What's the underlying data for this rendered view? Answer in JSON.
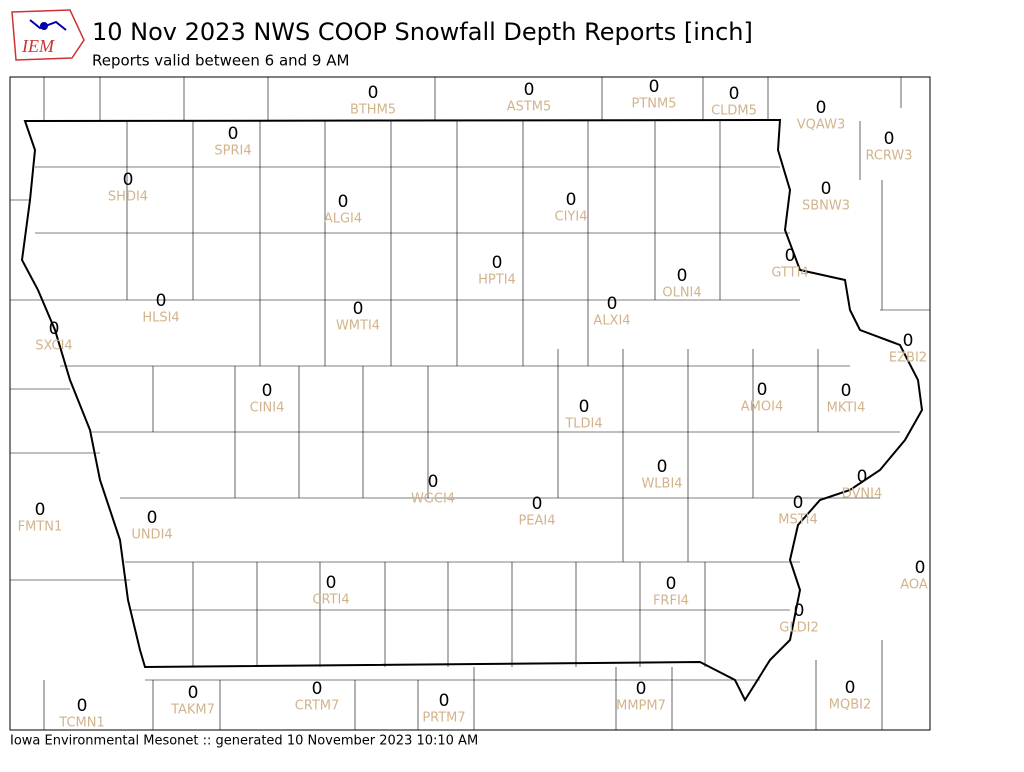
{
  "header": {
    "title": "10 Nov 2023 NWS COOP Snowfall Depth Reports [inch]",
    "subtitle": "Reports valid between 6 and 9 AM",
    "logo": "IEM"
  },
  "stations": [
    {
      "id": "BTHM5",
      "value": 0
    },
    {
      "id": "ASTM5",
      "value": 0
    },
    {
      "id": "PTNM5",
      "value": 0
    },
    {
      "id": "CLDM5",
      "value": 0
    },
    {
      "id": "VQAW3",
      "value": 0
    },
    {
      "id": "RCRW3",
      "value": 0
    },
    {
      "id": "SPRI4",
      "value": 0
    },
    {
      "id": "SBNW3",
      "value": 0
    },
    {
      "id": "SHDI4",
      "value": 0
    },
    {
      "id": "ALGI4",
      "value": 0
    },
    {
      "id": "CIYI4",
      "value": 0
    },
    {
      "id": "GTTI4",
      "value": 0
    },
    {
      "id": "HPTI4",
      "value": 0
    },
    {
      "id": "OLNI4",
      "value": 0
    },
    {
      "id": "HLSI4",
      "value": 0
    },
    {
      "id": "ALXI4",
      "value": 0
    },
    {
      "id": "WMTI4",
      "value": 0
    },
    {
      "id": "SXCI4",
      "value": 0
    },
    {
      "id": "EZBI2",
      "value": 0
    },
    {
      "id": "AMOI4",
      "value": 0
    },
    {
      "id": "CINI4",
      "value": 0
    },
    {
      "id": "MKTI4",
      "value": 0
    },
    {
      "id": "TLDI4",
      "value": 0
    },
    {
      "id": "WLBI4",
      "value": 0
    },
    {
      "id": "DVNI4",
      "value": 0
    },
    {
      "id": "WGCI4",
      "value": 0
    },
    {
      "id": "PEAI4",
      "value": 0
    },
    {
      "id": "FMTN1",
      "value": 0
    },
    {
      "id": "MSTI4",
      "value": 0
    },
    {
      "id": "UNDI4",
      "value": 0
    },
    {
      "id": "AOA",
      "value": 0
    },
    {
      "id": "CRTI4",
      "value": 0
    },
    {
      "id": "FRFI4",
      "value": 0
    },
    {
      "id": "GLDI2",
      "value": 0
    },
    {
      "id": "TAKM7",
      "value": 0
    },
    {
      "id": "CRTM7",
      "value": 0
    },
    {
      "id": "MMPM7",
      "value": 0
    },
    {
      "id": "MQBI2",
      "value": 0
    },
    {
      "id": "PRTM7",
      "value": 0
    },
    {
      "id": "TCMN1",
      "value": 0
    }
  ],
  "footer": "Iowa Environmental Mesonet :: generated 10 November 2023 10:10 AM"
}
